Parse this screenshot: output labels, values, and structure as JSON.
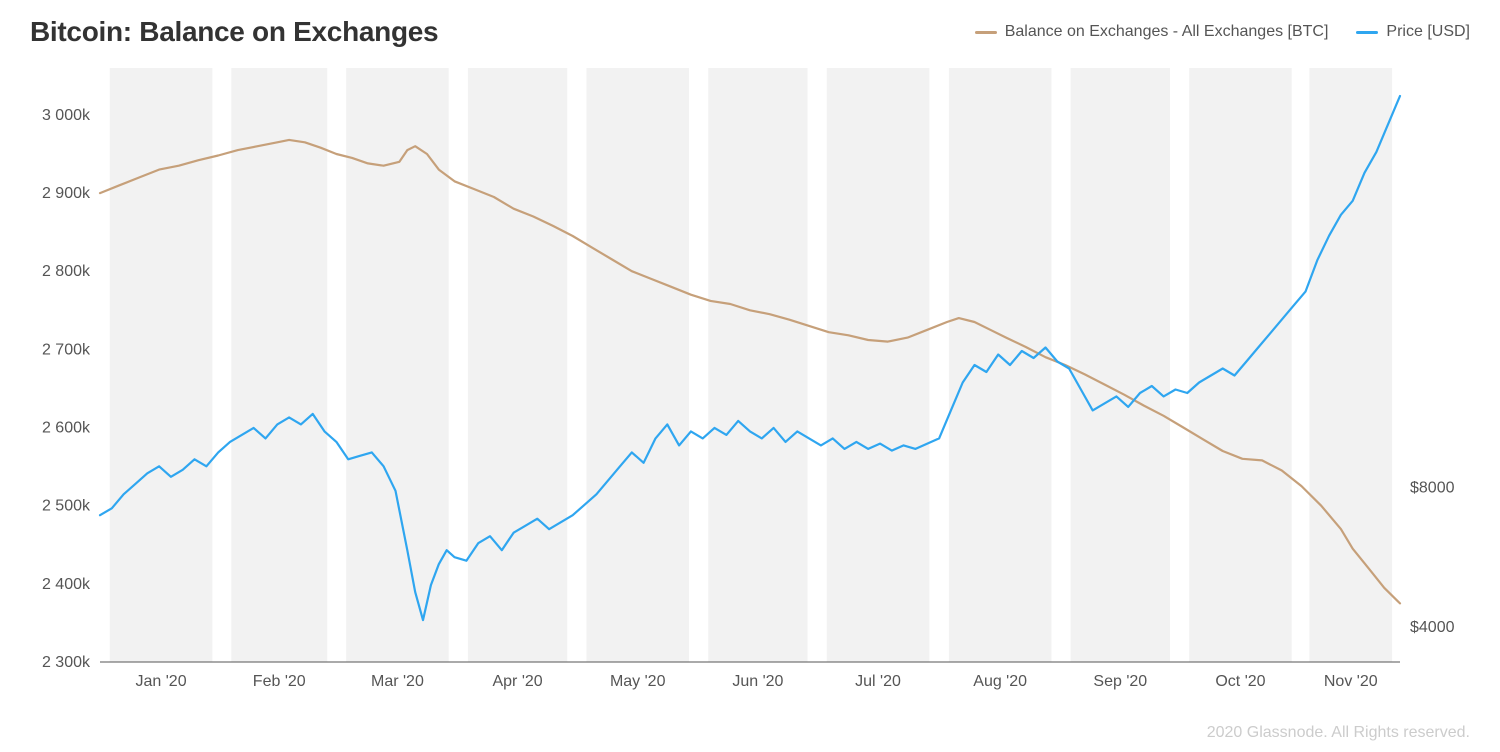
{
  "title": "Bitcoin: Balance on Exchanges",
  "footer": "2020 Glassnode. All Rights reserved.",
  "legend": {
    "a": {
      "label": "Balance on Exchanges - All Exchanges [BTC]",
      "color": "#c6a07a"
    },
    "b": {
      "label": "Price [USD]",
      "color": "#2fa6f0"
    }
  },
  "chart": {
    "type": "line-dual-axis",
    "background_color": "#ffffff",
    "month_band_color": "#f2f2f2",
    "axis_color": "#555555",
    "label_color": "#555555",
    "label_fontsize": 16,
    "title_fontsize": 28,
    "title_fontweight": 700,
    "line_width": 2.2,
    "x": {
      "domain": [
        0,
        330
      ],
      "month_starts": [
        0,
        31,
        60,
        91,
        121,
        152,
        182,
        213,
        244,
        274,
        305
      ],
      "month_ends": [
        31,
        60,
        91,
        121,
        152,
        182,
        213,
        244,
        274,
        305,
        330
      ],
      "month_labels": [
        "Jan '20",
        "Feb '20",
        "Mar '20",
        "Apr '20",
        "May '20",
        "Jun '20",
        "Jul '20",
        "Aug '20",
        "Sep '20",
        "Oct '20",
        "Nov '20"
      ]
    },
    "y_left": {
      "domain": [
        2300,
        3060
      ],
      "ticks": [
        2300,
        2400,
        2500,
        2600,
        2700,
        2800,
        2900,
        3000
      ],
      "tick_labels": [
        "2 300k",
        "2 400k",
        "2 500k",
        "2 600k",
        "2 700k",
        "2 800k",
        "2 900k",
        "3 000k"
      ]
    },
    "y_right": {
      "domain": [
        3000,
        20000
      ],
      "ticks": [
        4000,
        8000
      ],
      "tick_labels": [
        "$4000",
        "$8000"
      ]
    },
    "series": {
      "balance": {
        "color": "#c6a07a",
        "axis": "left",
        "points": [
          [
            0,
            2900
          ],
          [
            5,
            2910
          ],
          [
            10,
            2920
          ],
          [
            15,
            2930
          ],
          [
            20,
            2935
          ],
          [
            25,
            2942
          ],
          [
            30,
            2948
          ],
          [
            35,
            2955
          ],
          [
            40,
            2960
          ],
          [
            45,
            2965
          ],
          [
            48,
            2968
          ],
          [
            52,
            2965
          ],
          [
            56,
            2958
          ],
          [
            60,
            2950
          ],
          [
            64,
            2945
          ],
          [
            68,
            2938
          ],
          [
            72,
            2935
          ],
          [
            76,
            2940
          ],
          [
            78,
            2955
          ],
          [
            80,
            2960
          ],
          [
            83,
            2950
          ],
          [
            86,
            2930
          ],
          [
            90,
            2915
          ],
          [
            95,
            2905
          ],
          [
            100,
            2895
          ],
          [
            105,
            2880
          ],
          [
            110,
            2870
          ],
          [
            115,
            2858
          ],
          [
            120,
            2845
          ],
          [
            125,
            2830
          ],
          [
            130,
            2815
          ],
          [
            135,
            2800
          ],
          [
            140,
            2790
          ],
          [
            145,
            2780
          ],
          [
            150,
            2770
          ],
          [
            155,
            2762
          ],
          [
            160,
            2758
          ],
          [
            165,
            2750
          ],
          [
            170,
            2745
          ],
          [
            175,
            2738
          ],
          [
            180,
            2730
          ],
          [
            185,
            2722
          ],
          [
            190,
            2718
          ],
          [
            195,
            2712
          ],
          [
            200,
            2710
          ],
          [
            205,
            2715
          ],
          [
            210,
            2725
          ],
          [
            215,
            2735
          ],
          [
            218,
            2740
          ],
          [
            222,
            2735
          ],
          [
            226,
            2725
          ],
          [
            230,
            2715
          ],
          [
            235,
            2703
          ],
          [
            240,
            2690
          ],
          [
            245,
            2680
          ],
          [
            250,
            2668
          ],
          [
            255,
            2655
          ],
          [
            260,
            2642
          ],
          [
            265,
            2628
          ],
          [
            270,
            2615
          ],
          [
            275,
            2600
          ],
          [
            280,
            2585
          ],
          [
            285,
            2570
          ],
          [
            290,
            2560
          ],
          [
            295,
            2558
          ],
          [
            300,
            2545
          ],
          [
            305,
            2525
          ],
          [
            310,
            2500
          ],
          [
            315,
            2470
          ],
          [
            318,
            2445
          ],
          [
            322,
            2420
          ],
          [
            326,
            2395
          ],
          [
            330,
            2375
          ]
        ]
      },
      "price": {
        "color": "#2fa6f0",
        "axis": "right",
        "points": [
          [
            0,
            7200
          ],
          [
            3,
            7400
          ],
          [
            6,
            7800
          ],
          [
            9,
            8100
          ],
          [
            12,
            8400
          ],
          [
            15,
            8600
          ],
          [
            18,
            8300
          ],
          [
            21,
            8500
          ],
          [
            24,
            8800
          ],
          [
            27,
            8600
          ],
          [
            30,
            9000
          ],
          [
            33,
            9300
          ],
          [
            36,
            9500
          ],
          [
            39,
            9700
          ],
          [
            42,
            9400
          ],
          [
            45,
            9800
          ],
          [
            48,
            10000
          ],
          [
            51,
            9800
          ],
          [
            54,
            10100
          ],
          [
            57,
            9600
          ],
          [
            60,
            9300
          ],
          [
            63,
            8800
          ],
          [
            66,
            8900
          ],
          [
            69,
            9000
          ],
          [
            72,
            8600
          ],
          [
            75,
            7900
          ],
          [
            78,
            6200
          ],
          [
            80,
            5000
          ],
          [
            82,
            4200
          ],
          [
            84,
            5200
          ],
          [
            86,
            5800
          ],
          [
            88,
            6200
          ],
          [
            90,
            6000
          ],
          [
            93,
            5900
          ],
          [
            96,
            6400
          ],
          [
            99,
            6600
          ],
          [
            102,
            6200
          ],
          [
            105,
            6700
          ],
          [
            108,
            6900
          ],
          [
            111,
            7100
          ],
          [
            114,
            6800
          ],
          [
            117,
            7000
          ],
          [
            120,
            7200
          ],
          [
            123,
            7500
          ],
          [
            126,
            7800
          ],
          [
            129,
            8200
          ],
          [
            132,
            8600
          ],
          [
            135,
            9000
          ],
          [
            138,
            8700
          ],
          [
            141,
            9400
          ],
          [
            144,
            9800
          ],
          [
            147,
            9200
          ],
          [
            150,
            9600
          ],
          [
            153,
            9400
          ],
          [
            156,
            9700
          ],
          [
            159,
            9500
          ],
          [
            162,
            9900
          ],
          [
            165,
            9600
          ],
          [
            168,
            9400
          ],
          [
            171,
            9700
          ],
          [
            174,
            9300
          ],
          [
            177,
            9600
          ],
          [
            180,
            9400
          ],
          [
            183,
            9200
          ],
          [
            186,
            9400
          ],
          [
            189,
            9100
          ],
          [
            192,
            9300
          ],
          [
            195,
            9100
          ],
          [
            198,
            9250
          ],
          [
            201,
            9050
          ],
          [
            204,
            9200
          ],
          [
            207,
            9100
          ],
          [
            210,
            9250
          ],
          [
            213,
            9400
          ],
          [
            216,
            10200
          ],
          [
            219,
            11000
          ],
          [
            222,
            11500
          ],
          [
            225,
            11300
          ],
          [
            228,
            11800
          ],
          [
            231,
            11500
          ],
          [
            234,
            11900
          ],
          [
            237,
            11700
          ],
          [
            240,
            12000
          ],
          [
            243,
            11600
          ],
          [
            246,
            11400
          ],
          [
            249,
            10800
          ],
          [
            252,
            10200
          ],
          [
            255,
            10400
          ],
          [
            258,
            10600
          ],
          [
            261,
            10300
          ],
          [
            264,
            10700
          ],
          [
            267,
            10900
          ],
          [
            270,
            10600
          ],
          [
            273,
            10800
          ],
          [
            276,
            10700
          ],
          [
            279,
            11000
          ],
          [
            282,
            11200
          ],
          [
            285,
            11400
          ],
          [
            288,
            11200
          ],
          [
            291,
            11600
          ],
          [
            294,
            12000
          ],
          [
            297,
            12400
          ],
          [
            300,
            12800
          ],
          [
            303,
            13200
          ],
          [
            306,
            13600
          ],
          [
            309,
            14500
          ],
          [
            312,
            15200
          ],
          [
            315,
            15800
          ],
          [
            318,
            16200
          ],
          [
            321,
            17000
          ],
          [
            324,
            17600
          ],
          [
            327,
            18400
          ],
          [
            330,
            19200
          ]
        ]
      }
    }
  }
}
